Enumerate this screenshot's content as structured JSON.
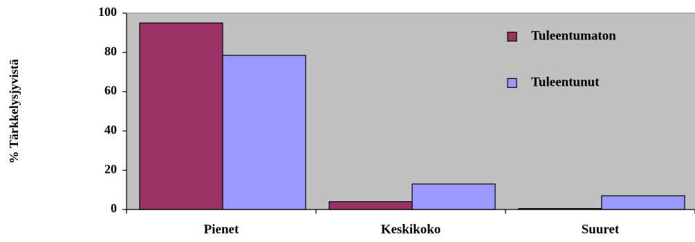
{
  "chart_data": {
    "type": "bar",
    "title": "",
    "xlabel": "",
    "ylabel": "% Tärkkelysjyvistä",
    "categories": [
      "Pienet",
      "Keskikoko",
      "Suuret"
    ],
    "ylim": [
      0,
      100
    ],
    "yticks": [
      "0",
      "20",
      "40",
      "60",
      "80",
      "100"
    ],
    "grid": false,
    "legend_position": "top-right, inside plot",
    "plot_background": "#c0c0c0",
    "series": [
      {
        "name": "Tuleentumaton",
        "color": "#993366",
        "values": [
          95,
          4,
          0.5
        ]
      },
      {
        "name": "Tuleentunut",
        "color": "#9999ff",
        "values": [
          78.5,
          13,
          7
        ]
      }
    ]
  }
}
